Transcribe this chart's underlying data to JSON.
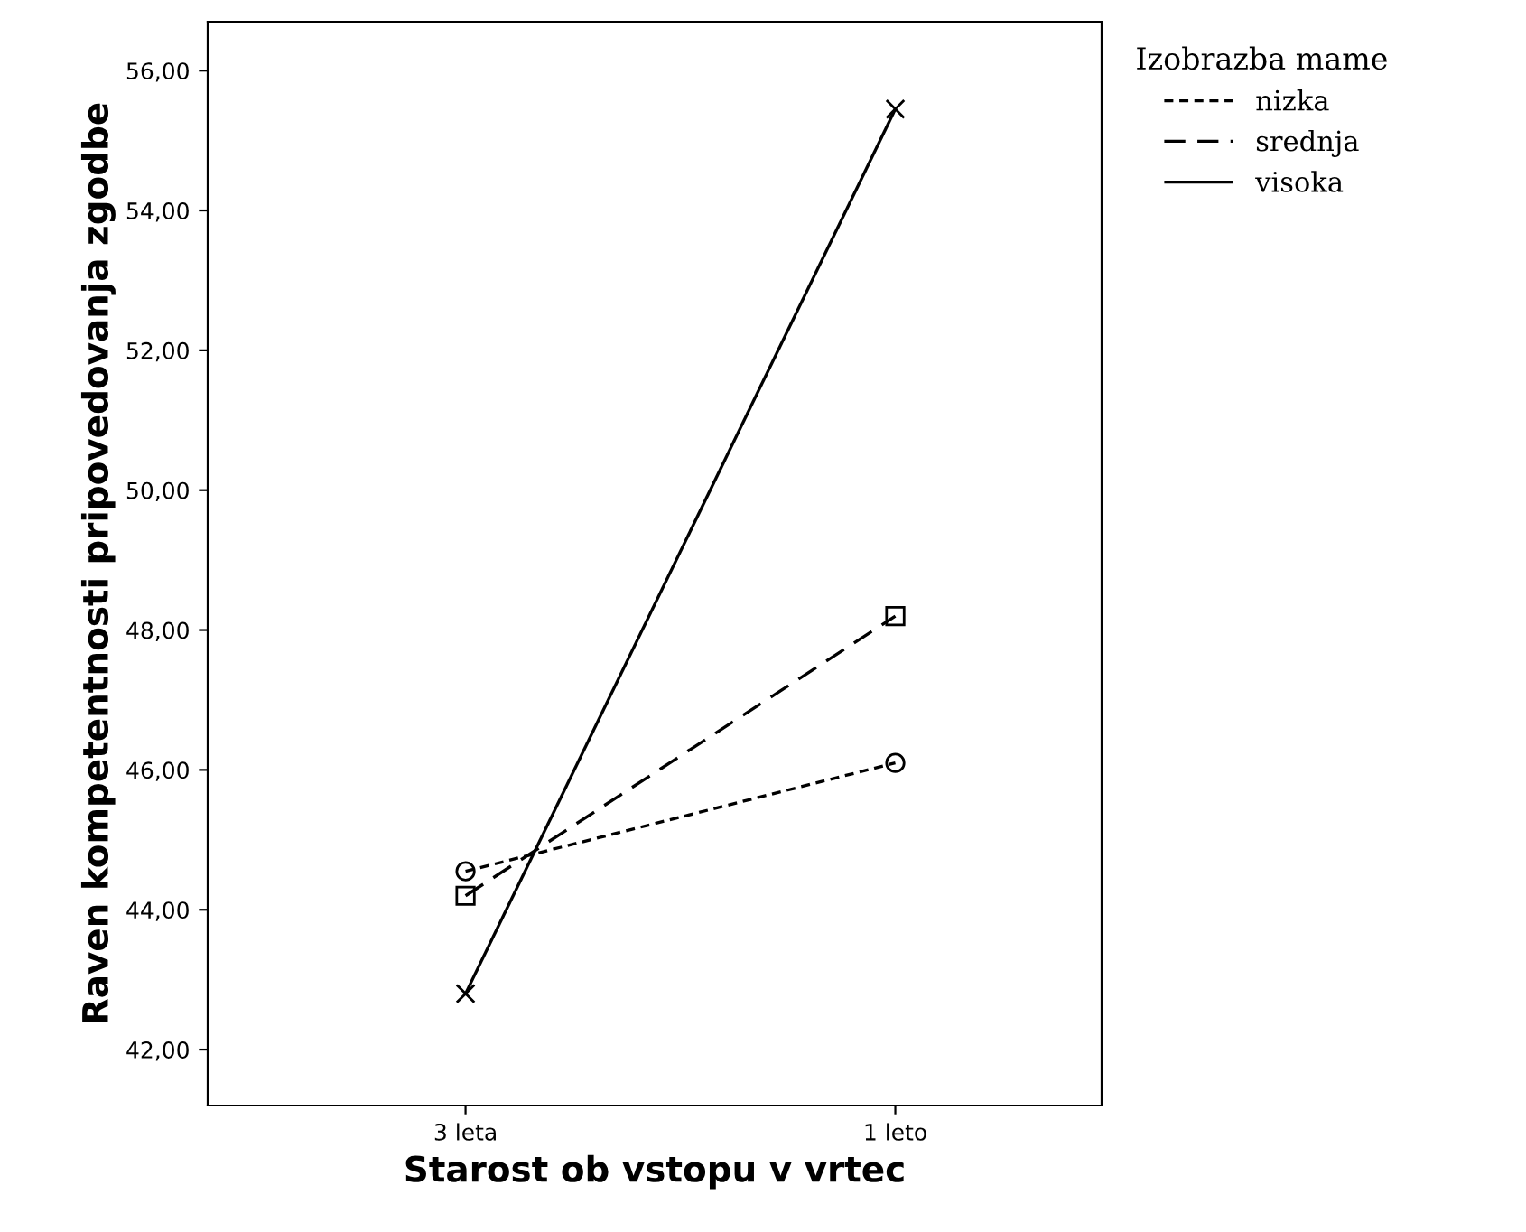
{
  "chart_data": {
    "type": "line",
    "xlabel": "Starost ob vstopu v vrtec",
    "ylabel": "Raven kompetentnosti pripovedovanja zgodbe",
    "legend_title": "Izobrazba mame",
    "categories": [
      "3 leta",
      "1 leto"
    ],
    "series": [
      {
        "name": "nizka",
        "color": "#000000",
        "values": [
          44.55,
          46.1
        ],
        "line_style": "dotted",
        "marker": "circle"
      },
      {
        "name": "srednja",
        "color": "#000000",
        "values": [
          44.2,
          48.2
        ],
        "line_style": "dashed",
        "marker": "square"
      },
      {
        "name": "visoka",
        "color": "#000000",
        "values": [
          42.8,
          55.45
        ],
        "line_style": "solid",
        "marker": "cross"
      }
    ],
    "ylim": [
      41.2,
      56.7
    ],
    "yticks": [
      {
        "value": 42,
        "label": "42,00"
      },
      {
        "value": 44,
        "label": "44,00"
      },
      {
        "value": 46,
        "label": "46,00"
      },
      {
        "value": 48,
        "label": "48,00"
      },
      {
        "value": 50,
        "label": "50,00"
      },
      {
        "value": 52,
        "label": "52,00"
      },
      {
        "value": 54,
        "label": "54,00"
      },
      {
        "value": 56,
        "label": "56,00"
      }
    ],
    "grid": false,
    "legend": "top right"
  }
}
